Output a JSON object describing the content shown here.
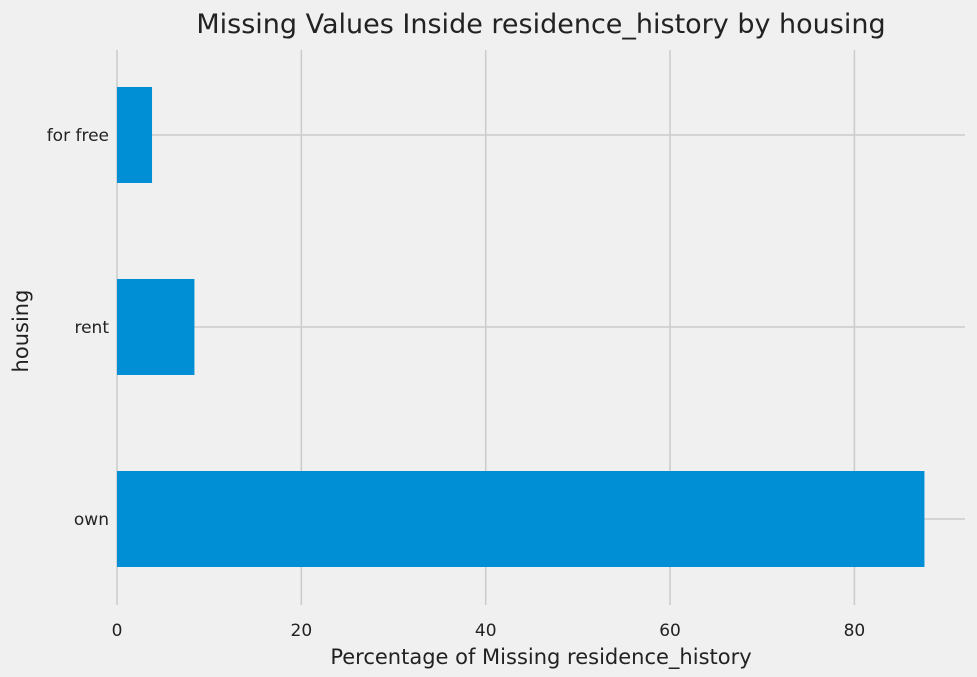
{
  "chart_data": {
    "type": "bar",
    "orientation": "horizontal",
    "title": "Missing Values Inside residence_history by housing",
    "xlabel": "Percentage of Missing residence_history",
    "ylabel": "housing",
    "categories": [
      "own",
      "rent",
      "for free"
    ],
    "values": [
      87.6,
      8.4,
      3.8
    ],
    "xlim": [
      0,
      92
    ],
    "xticks": [
      0,
      20,
      40,
      60,
      80
    ],
    "grid": true,
    "legend": "none",
    "colors": {
      "bar": "#008fd5",
      "background": "#f0f0f0",
      "grid": "#cbcbcb"
    }
  }
}
